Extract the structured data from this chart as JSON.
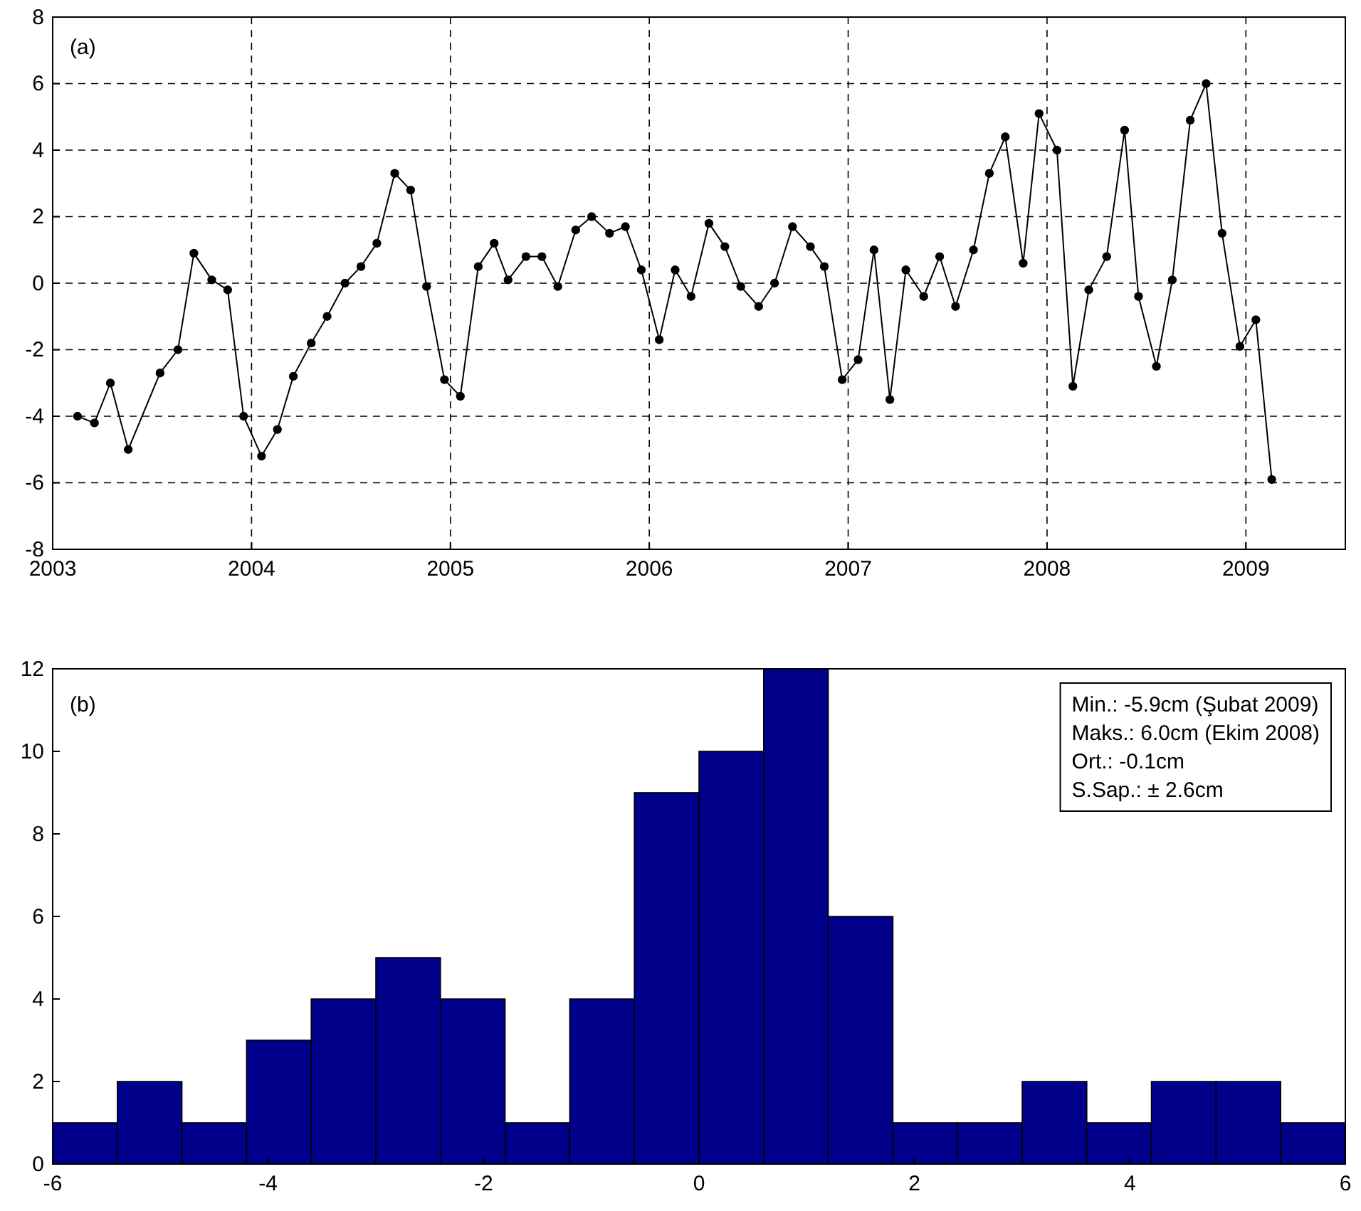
{
  "chart_data": [
    {
      "type": "line",
      "marker": "circle",
      "line_style": "solid",
      "grid": true,
      "annotations": [
        "(a)"
      ],
      "xlim": [
        2003,
        2009.5
      ],
      "xticks": [
        2003,
        2004,
        2005,
        2006,
        2007,
        2008,
        2009
      ],
      "ylim": [
        -8,
        8
      ],
      "yticks": [
        -8,
        -6,
        -4,
        -2,
        0,
        2,
        4,
        6,
        8
      ],
      "series": [
        {
          "color": "#000000",
          "x": [
            2003.125,
            2003.21,
            2003.29,
            2003.38,
            2003.54,
            2003.63,
            2003.71,
            2003.8,
            2003.88,
            2003.96,
            2004.05,
            2004.13,
            2004.21,
            2004.3,
            2004.38,
            2004.47,
            2004.55,
            2004.63,
            2004.72,
            2004.8,
            2004.88,
            2004.97,
            2005.05,
            2005.14,
            2005.22,
            2005.29,
            2005.38,
            2005.46,
            2005.54,
            2005.63,
            2005.71,
            2005.8,
            2005.88,
            2005.96,
            2006.05,
            2006.13,
            2006.21,
            2006.3,
            2006.38,
            2006.46,
            2006.55,
            2006.63,
            2006.72,
            2006.81,
            2006.88,
            2006.97,
            2007.05,
            2007.13,
            2007.21,
            2007.29,
            2007.38,
            2007.46,
            2007.54,
            2007.63,
            2007.71,
            2007.79,
            2007.88,
            2007.96,
            2008.05,
            2008.13,
            2008.21,
            2008.3,
            2008.39,
            2008.46,
            2008.55,
            2008.63,
            2008.72,
            2008.8,
            2008.88,
            2008.97,
            2009.05,
            2009.13
          ],
          "values": [
            -4.0,
            -4.2,
            -3.0,
            -5.0,
            -2.7,
            -2.0,
            0.9,
            0.1,
            -0.2,
            -4.0,
            -5.2,
            -4.4,
            -2.8,
            -1.8,
            -1.0,
            0.0,
            0.5,
            1.2,
            3.3,
            2.8,
            -0.1,
            -2.9,
            -3.4,
            0.5,
            1.2,
            0.1,
            0.8,
            0.8,
            -0.1,
            1.6,
            2.0,
            1.5,
            1.7,
            0.4,
            -1.7,
            0.4,
            -0.4,
            1.8,
            1.1,
            -0.1,
            -0.7,
            0.0,
            1.7,
            1.1,
            0.5,
            -2.9,
            -2.3,
            1.0,
            -3.5,
            0.4,
            -0.4,
            0.8,
            -0.7,
            1.0,
            3.3,
            4.4,
            0.6,
            5.1,
            4.0,
            -3.1,
            -0.2,
            0.8,
            4.6,
            -0.4,
            -2.5,
            0.1,
            4.9,
            6.0,
            1.5,
            -1.9,
            -1.1,
            -5.9
          ]
        }
      ]
    },
    {
      "type": "histogram",
      "color": "#00008b",
      "annotations": [
        "(b)",
        "Min.: -5.9cm (Şubat 2009)",
        "Maks.: 6.0cm (Ekim 2008)",
        "Ort.: -0.1cm",
        "S.Sap.: ± 2.6cm"
      ],
      "bins": [
        -6,
        -5.4,
        -4.8,
        -4.2,
        -3.6,
        -3,
        -2.4,
        -1.8,
        -1.2,
        -0.6,
        0,
        0.6,
        1.2,
        1.8,
        2.4,
        3,
        3.6,
        4.2,
        4.8,
        5.4,
        6
      ],
      "values": [
        1,
        2,
        1,
        3,
        4,
        5,
        4,
        1,
        4,
        9,
        10,
        12,
        6,
        1,
        1,
        2,
        1,
        2,
        2,
        1
      ],
      "xlim": [
        -6,
        6
      ],
      "xticks": [
        -6,
        -4,
        -2,
        0,
        2,
        4,
        6
      ],
      "ylim": [
        0,
        12
      ],
      "yticks": [
        0,
        2,
        4,
        6,
        8,
        10,
        12
      ]
    }
  ]
}
